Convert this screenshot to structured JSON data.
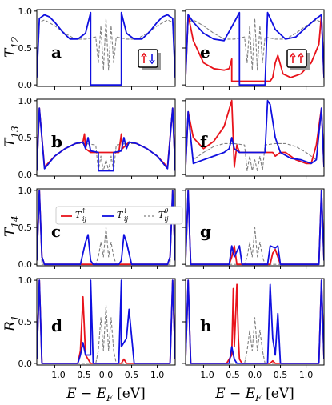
{
  "figure": {
    "xlabel": "E − E_F [eV]",
    "colors": {
      "up": "#e8131b",
      "down": "#1010e0",
      "zero": "#808080"
    },
    "legend": {
      "up": "T↑ij",
      "down": "T↓ij",
      "zero": "T0ij"
    }
  },
  "chart_data": [
    {
      "panel": "a",
      "ylabel": "T12",
      "type": "line",
      "xlim": [
        -1.35,
        1.35
      ],
      "ylim": [
        -0.02,
        1.02
      ],
      "yticks": [
        "0.0",
        "0.5",
        "1.0"
      ],
      "inset": "up-down",
      "series": [
        {
          "name": "down",
          "x": [
            -1.35,
            -1.3,
            -1.2,
            -1.1,
            -1.0,
            -0.85,
            -0.7,
            -0.55,
            -0.4,
            -0.3,
            -0.3,
            0.3,
            0.3,
            0.4,
            0.55,
            0.7,
            0.85,
            1.0,
            1.1,
            1.2,
            1.3,
            1.35
          ],
          "y": [
            0.1,
            0.9,
            0.95,
            0.92,
            0.85,
            0.72,
            0.62,
            0.62,
            0.7,
            0.98,
            0.0,
            0.0,
            0.98,
            0.7,
            0.62,
            0.62,
            0.72,
            0.85,
            0.92,
            0.95,
            0.9,
            0.1
          ]
        },
        {
          "name": "zero",
          "x": [
            -1.35,
            -1.3,
            -1.2,
            -1.0,
            -0.8,
            -0.6,
            -0.4,
            -0.2,
            -0.15,
            -0.1,
            -0.05,
            0.0,
            0.05,
            0.1,
            0.15,
            0.2,
            0.4,
            0.6,
            0.8,
            1.0,
            1.2,
            1.3,
            1.35
          ],
          "y": [
            0.1,
            0.85,
            0.88,
            0.8,
            0.7,
            0.62,
            0.62,
            0.65,
            0.3,
            0.8,
            0.2,
            0.9,
            0.2,
            0.8,
            0.3,
            0.65,
            0.62,
            0.62,
            0.7,
            0.8,
            0.88,
            0.85,
            0.1
          ]
        }
      ]
    },
    {
      "panel": "e",
      "type": "line",
      "xlim": [
        -1.35,
        1.35
      ],
      "ylim": [
        -0.02,
        1.02
      ],
      "inset": "up-up",
      "series": [
        {
          "name": "up",
          "x": [
            -1.35,
            -1.3,
            -1.2,
            -1.0,
            -0.8,
            -0.6,
            -0.5,
            -0.45,
            -0.45,
            -0.4,
            0.3,
            0.35,
            0.4,
            0.45,
            0.55,
            0.7,
            0.9,
            1.1,
            1.25,
            1.3,
            1.35
          ],
          "y": [
            0.1,
            0.95,
            0.6,
            0.3,
            0.22,
            0.2,
            0.22,
            0.35,
            0.05,
            0.05,
            0.05,
            0.1,
            0.3,
            0.4,
            0.15,
            0.1,
            0.15,
            0.3,
            0.55,
            0.95,
            0.1
          ]
        },
        {
          "name": "down",
          "x": [
            -1.35,
            -1.3,
            -1.2,
            -1.0,
            -0.8,
            -0.6,
            -0.4,
            -0.3,
            -0.3,
            0.2,
            0.25,
            0.25,
            0.4,
            0.6,
            0.8,
            1.0,
            1.2,
            1.3,
            1.35
          ],
          "y": [
            0.1,
            0.95,
            0.85,
            0.7,
            0.62,
            0.6,
            0.85,
            0.98,
            0.0,
            0.0,
            0.98,
            0.98,
            0.75,
            0.62,
            0.65,
            0.78,
            0.9,
            0.95,
            0.1
          ]
        },
        {
          "name": "zero",
          "x": [
            -1.35,
            -1.3,
            -1.2,
            -1.0,
            -0.8,
            -0.6,
            -0.4,
            -0.2,
            -0.15,
            -0.1,
            -0.05,
            0.0,
            0.05,
            0.1,
            0.15,
            0.2,
            0.4,
            0.6,
            0.8,
            1.0,
            1.2,
            1.3,
            1.35
          ],
          "y": [
            0.1,
            0.85,
            0.88,
            0.8,
            0.7,
            0.62,
            0.62,
            0.65,
            0.3,
            0.8,
            0.2,
            0.9,
            0.2,
            0.8,
            0.3,
            0.65,
            0.62,
            0.62,
            0.7,
            0.8,
            0.88,
            0.85,
            0.1
          ]
        }
      ]
    },
    {
      "panel": "b",
      "ylabel": "T13",
      "type": "line",
      "xlim": [
        -1.35,
        1.35
      ],
      "ylim": [
        -0.02,
        1.02
      ],
      "yticks": [
        "0.0",
        "0.5",
        "1.0"
      ],
      "series": [
        {
          "name": "up",
          "x": [
            -1.35,
            -1.3,
            -1.2,
            -1.0,
            -0.8,
            -0.6,
            -0.45,
            -0.42,
            -0.4,
            -0.3,
            0.25,
            0.3,
            0.32,
            0.45,
            0.6,
            0.8,
            1.0,
            1.2,
            1.3,
            1.35
          ],
          "y": [
            0.05,
            0.9,
            0.1,
            0.25,
            0.35,
            0.42,
            0.44,
            0.55,
            0.35,
            0.3,
            0.3,
            0.55,
            0.35,
            0.44,
            0.42,
            0.35,
            0.25,
            0.1,
            0.9,
            0.05
          ]
        },
        {
          "name": "down",
          "x": [
            -1.35,
            -1.3,
            -1.2,
            -1.0,
            -0.8,
            -0.6,
            -0.45,
            -0.4,
            -0.35,
            -0.3,
            -0.15,
            -0.15,
            0.15,
            0.15,
            0.3,
            0.35,
            0.4,
            0.45,
            0.6,
            0.8,
            1.0,
            1.2,
            1.3,
            1.35
          ],
          "y": [
            0.05,
            0.9,
            0.08,
            0.25,
            0.35,
            0.42,
            0.44,
            0.35,
            0.5,
            0.32,
            0.3,
            0.05,
            0.05,
            0.3,
            0.32,
            0.5,
            0.35,
            0.44,
            0.42,
            0.35,
            0.25,
            0.08,
            0.9,
            0.05
          ]
        },
        {
          "name": "zero",
          "x": [
            -1.35,
            -1.3,
            -1.2,
            -1.0,
            -0.8,
            -0.6,
            -0.4,
            -0.2,
            -0.15,
            -0.1,
            -0.05,
            0.0,
            0.05,
            0.1,
            0.15,
            0.2,
            0.4,
            0.6,
            0.8,
            1.0,
            1.2,
            1.3,
            1.35
          ],
          "y": [
            0.05,
            0.9,
            0.1,
            0.25,
            0.35,
            0.42,
            0.42,
            0.4,
            0.05,
            0.25,
            0.05,
            0.2,
            0.05,
            0.25,
            0.05,
            0.4,
            0.42,
            0.42,
            0.35,
            0.25,
            0.1,
            0.9,
            0.05
          ]
        }
      ]
    },
    {
      "panel": "f",
      "type": "line",
      "xlim": [
        -1.35,
        1.35
      ],
      "ylim": [
        -0.02,
        1.02
      ],
      "series": [
        {
          "name": "up",
          "x": [
            -1.35,
            -1.3,
            -1.2,
            -1.0,
            -0.8,
            -0.6,
            -0.45,
            -0.4,
            -0.35,
            -0.3,
            0.3,
            0.35,
            0.4,
            0.5,
            0.6,
            0.8,
            1.0,
            1.1,
            1.2,
            1.3,
            1.35
          ],
          "y": [
            0.1,
            0.85,
            0.5,
            0.35,
            0.45,
            0.65,
            1.0,
            0.1,
            0.4,
            0.3,
            0.3,
            0.3,
            0.25,
            0.3,
            0.3,
            0.2,
            0.15,
            0.15,
            0.4,
            0.9,
            0.1
          ]
        },
        {
          "name": "down",
          "x": [
            -1.35,
            -1.3,
            -1.2,
            -1.0,
            -0.8,
            -0.6,
            -0.5,
            -0.45,
            -0.4,
            -0.3,
            0.2,
            0.25,
            0.3,
            0.4,
            0.5,
            0.7,
            0.9,
            1.1,
            1.2,
            1.3,
            1.35
          ],
          "y": [
            0.1,
            0.85,
            0.15,
            0.2,
            0.25,
            0.3,
            0.35,
            0.5,
            0.35,
            0.3,
            0.3,
            1.0,
            0.95,
            0.5,
            0.3,
            0.22,
            0.2,
            0.15,
            0.2,
            0.9,
            0.1
          ]
        },
        {
          "name": "zero",
          "x": [
            -1.35,
            -1.3,
            -1.2,
            -1.0,
            -0.8,
            -0.6,
            -0.4,
            -0.2,
            -0.15,
            -0.1,
            -0.05,
            0.0,
            0.05,
            0.1,
            0.15,
            0.2,
            0.4,
            0.6,
            0.8,
            1.0,
            1.2,
            1.3,
            1.35
          ],
          "y": [
            0.1,
            0.85,
            0.2,
            0.3,
            0.38,
            0.42,
            0.42,
            0.4,
            0.05,
            0.25,
            0.05,
            0.2,
            0.05,
            0.25,
            0.05,
            0.4,
            0.42,
            0.42,
            0.38,
            0.3,
            0.2,
            0.85,
            0.1
          ]
        }
      ]
    },
    {
      "panel": "c",
      "ylabel": "T14",
      "type": "line",
      "xlim": [
        -1.35,
        1.35
      ],
      "ylim": [
        -0.02,
        1.02
      ],
      "yticks": [
        "0.0",
        "0.5",
        "1.0"
      ],
      "legend": true,
      "series": [
        {
          "name": "up",
          "x": [
            -1.35,
            -1.3,
            -1.25,
            -1.2,
            1.2,
            1.25,
            1.3,
            1.35
          ],
          "y": [
            0.05,
            1.0,
            0.1,
            0.0,
            0.0,
            0.1,
            1.0,
            0.05
          ]
        },
        {
          "name": "down",
          "x": [
            -1.35,
            -1.3,
            -1.25,
            -1.2,
            -0.5,
            -0.45,
            -0.4,
            -0.35,
            -0.3,
            -0.25,
            0.25,
            0.3,
            0.35,
            0.4,
            0.45,
            0.5,
            1.2,
            1.25,
            1.3,
            1.35
          ],
          "y": [
            0.05,
            1.0,
            0.1,
            0.0,
            0.0,
            0.15,
            0.3,
            0.4,
            0.05,
            0.0,
            0.0,
            0.05,
            0.4,
            0.3,
            0.15,
            0.0,
            0.0,
            0.1,
            1.0,
            0.05
          ]
        },
        {
          "name": "zero",
          "x": [
            -1.35,
            -1.3,
            -1.25,
            -0.2,
            -0.15,
            -0.1,
            -0.05,
            0.0,
            0.05,
            0.1,
            0.15,
            0.2,
            1.25,
            1.3,
            1.35
          ],
          "y": [
            0.05,
            1.0,
            0.0,
            0.0,
            0.1,
            0.3,
            0.1,
            0.5,
            0.1,
            0.3,
            0.1,
            0.0,
            0.0,
            1.0,
            0.05
          ]
        }
      ]
    },
    {
      "panel": "g",
      "type": "line",
      "xlim": [
        -1.35,
        1.35
      ],
      "ylim": [
        -0.02,
        1.02
      ],
      "series": [
        {
          "name": "up",
          "x": [
            -1.35,
            -1.3,
            -1.25,
            -0.5,
            -0.45,
            -0.4,
            -0.35,
            0.3,
            0.35,
            0.4,
            0.45,
            0.5,
            1.25,
            1.3,
            1.35
          ],
          "y": [
            0.05,
            1.0,
            0.0,
            0.0,
            0.1,
            0.25,
            0.0,
            0.0,
            0.15,
            0.2,
            0.1,
            0.0,
            0.0,
            1.0,
            0.05
          ]
        },
        {
          "name": "down",
          "x": [
            -1.35,
            -1.3,
            -1.25,
            -0.5,
            -0.45,
            -0.4,
            -0.3,
            -0.25,
            0.25,
            0.3,
            0.4,
            0.45,
            0.5,
            1.25,
            1.3,
            1.35
          ],
          "y": [
            0.05,
            1.0,
            0.0,
            0.0,
            0.25,
            0.1,
            0.25,
            0.0,
            0.0,
            0.25,
            0.22,
            0.25,
            0.0,
            0.0,
            1.0,
            0.05
          ]
        },
        {
          "name": "zero",
          "x": [
            -1.35,
            -1.3,
            -1.25,
            -0.2,
            -0.15,
            -0.1,
            -0.05,
            0.0,
            0.05,
            0.1,
            0.15,
            0.2,
            1.25,
            1.3,
            1.35
          ],
          "y": [
            0.05,
            1.0,
            0.0,
            0.0,
            0.1,
            0.3,
            0.1,
            0.5,
            0.1,
            0.3,
            0.1,
            0.0,
            0.0,
            1.0,
            0.05
          ]
        }
      ]
    },
    {
      "panel": "d",
      "ylabel": "R1",
      "type": "line",
      "xlim": [
        -1.35,
        1.35
      ],
      "ylim": [
        -0.02,
        1.02
      ],
      "yticks": [
        "0.0",
        "0.5",
        "1.0"
      ],
      "series": [
        {
          "name": "up",
          "x": [
            -1.35,
            -1.3,
            -1.25,
            -0.55,
            -0.5,
            -0.45,
            -0.4,
            -0.35,
            -0.3,
            0.3,
            0.35,
            0.4,
            1.25,
            1.3,
            1.35
          ],
          "y": [
            0.05,
            1.0,
            0.0,
            0.0,
            0.15,
            0.8,
            0.1,
            0.05,
            0.0,
            0.0,
            0.05,
            0.0,
            0.0,
            1.0,
            0.05
          ]
        },
        {
          "name": "down",
          "x": [
            -1.35,
            -1.3,
            -1.25,
            -0.55,
            -0.5,
            -0.45,
            -0.4,
            -0.3,
            -0.3,
            -0.25,
            0.25,
            0.3,
            0.3,
            0.4,
            0.45,
            0.55,
            1.25,
            1.3,
            1.35
          ],
          "y": [
            0.05,
            1.0,
            0.0,
            0.0,
            0.1,
            0.25,
            0.1,
            0.1,
            1.0,
            0.0,
            0.0,
            1.0,
            0.2,
            0.3,
            0.65,
            0.0,
            0.0,
            1.0,
            0.05
          ]
        },
        {
          "name": "zero",
          "x": [
            -1.35,
            -1.3,
            -1.25,
            -0.2,
            -0.15,
            -0.1,
            -0.05,
            0.0,
            0.05,
            0.1,
            0.15,
            0.2,
            1.25,
            1.3,
            1.35
          ],
          "y": [
            0.05,
            1.0,
            0.0,
            0.0,
            0.15,
            0.55,
            0.15,
            0.7,
            0.15,
            0.55,
            0.15,
            0.0,
            0.0,
            1.0,
            0.05
          ]
        }
      ]
    },
    {
      "panel": "h",
      "type": "line",
      "xlim": [
        -1.35,
        1.35
      ],
      "ylim": [
        -0.02,
        1.02
      ],
      "series": [
        {
          "name": "up",
          "x": [
            -1.35,
            -1.3,
            -1.25,
            -0.55,
            -0.45,
            -0.42,
            -0.4,
            -0.38,
            -0.35,
            -0.32,
            -0.3,
            -0.25,
            0.3,
            0.35,
            0.4,
            1.25,
            1.3,
            1.35
          ],
          "y": [
            0.05,
            1.0,
            0.0,
            0.0,
            0.1,
            0.9,
            0.2,
            0.5,
            0.95,
            0.3,
            0.05,
            0.0,
            0.0,
            0.03,
            0.0,
            0.0,
            1.0,
            0.05
          ]
        },
        {
          "name": "down",
          "x": [
            -1.35,
            -1.3,
            -1.25,
            -0.5,
            -0.45,
            -0.4,
            -0.35,
            -0.3,
            0.25,
            0.3,
            0.35,
            0.4,
            0.45,
            0.5,
            1.25,
            1.3,
            1.35
          ],
          "y": [
            0.05,
            1.0,
            0.0,
            0.0,
            0.2,
            0.05,
            0.0,
            0.0,
            0.0,
            0.95,
            0.3,
            0.1,
            0.6,
            0.0,
            0.0,
            1.0,
            0.05
          ]
        },
        {
          "name": "zero",
          "x": [
            -1.35,
            -1.3,
            -1.25,
            -0.2,
            -0.15,
            -0.1,
            -0.05,
            0.0,
            0.05,
            0.1,
            0.15,
            0.2,
            1.25,
            1.3,
            1.35
          ],
          "y": [
            0.05,
            1.0,
            0.0,
            0.0,
            0.15,
            0.4,
            0.15,
            0.55,
            0.15,
            0.4,
            0.15,
            0.0,
            0.0,
            1.0,
            0.05
          ]
        }
      ]
    }
  ],
  "xticks": [
    "−1.0",
    "−0.5",
    "0.0",
    "0.5",
    "1.0"
  ],
  "xtick_values": [
    -1.0,
    -0.5,
    0.0,
    0.5,
    1.0
  ]
}
